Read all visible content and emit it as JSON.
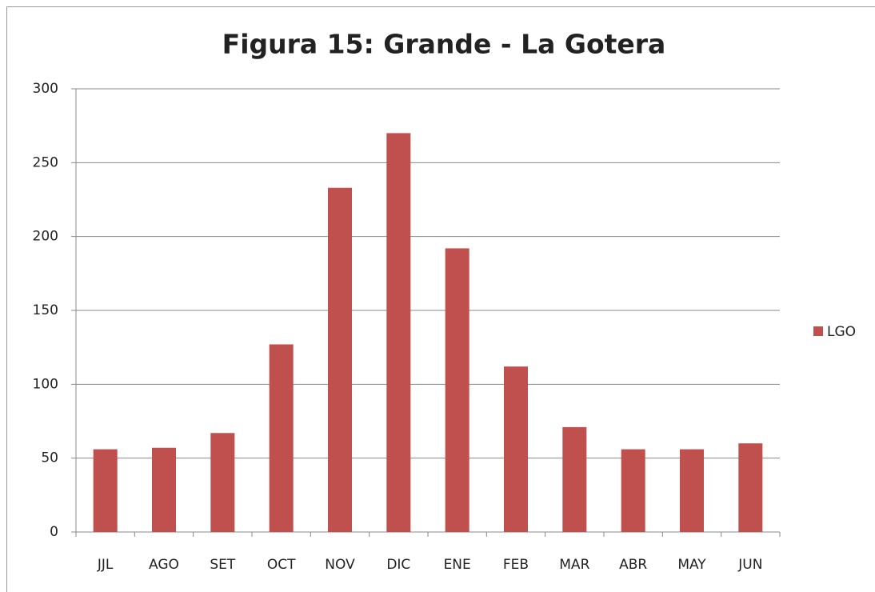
{
  "chart_data": {
    "type": "bar",
    "title": "Figura 15: Grande - La Gotera",
    "categories": [
      "JJL",
      "AGO",
      "SET",
      "OCT",
      "NOV",
      "DIC",
      "ENE",
      "FEB",
      "MAR",
      "ABR",
      "MAY",
      "JUN"
    ],
    "series": [
      {
        "name": "LGO",
        "color": "#c0504d",
        "values": [
          56,
          57,
          67,
          127,
          233,
          270,
          192,
          112,
          71,
          56,
          56,
          60
        ]
      }
    ],
    "ylim": [
      0,
      300
    ],
    "yticks": [
      0,
      50,
      100,
      150,
      200,
      250,
      300
    ],
    "grid": true,
    "legend": "right"
  }
}
